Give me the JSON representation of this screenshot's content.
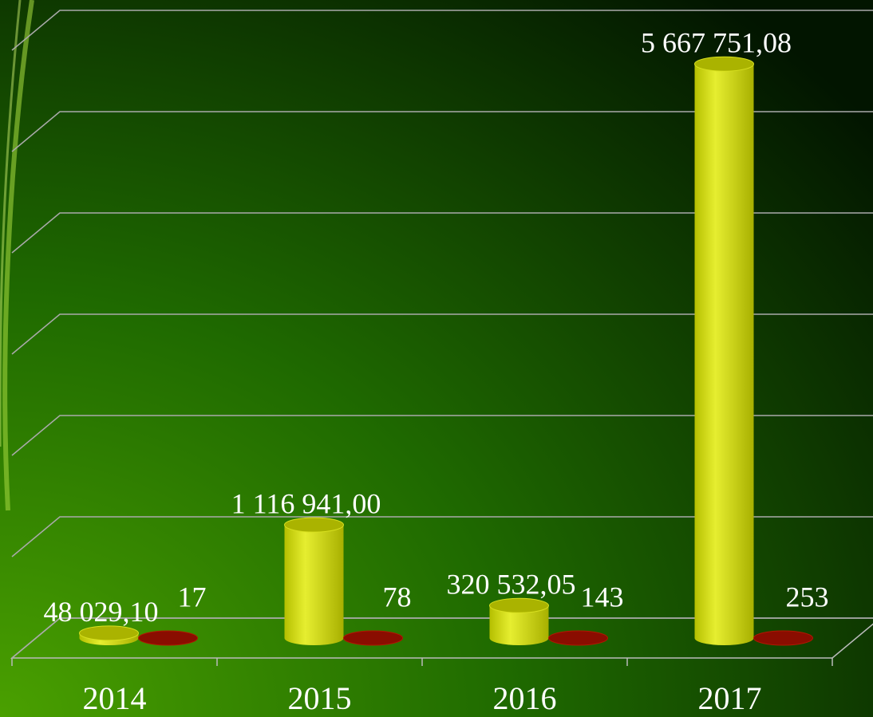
{
  "chart_data": {
    "type": "bar3d",
    "categories": [
      "2014",
      "2015",
      "2016",
      "2017"
    ],
    "series": [
      {
        "color": "#c8d400",
        "values": [
          48029.1,
          1116941.0,
          320532.05,
          5667751.08
        ],
        "value_labels": [
          "48 029,10",
          "1 116 941,00",
          "320 532,05",
          "5 667 751,08"
        ]
      },
      {
        "color": "#a01000",
        "values": [
          17,
          78,
          143,
          253
        ]
      }
    ],
    "ylim": [
      0,
      6000000
    ],
    "yticks": [
      0,
      1000000,
      2000000,
      3000000,
      4000000,
      5000000,
      6000000
    ],
    "grid": true
  }
}
